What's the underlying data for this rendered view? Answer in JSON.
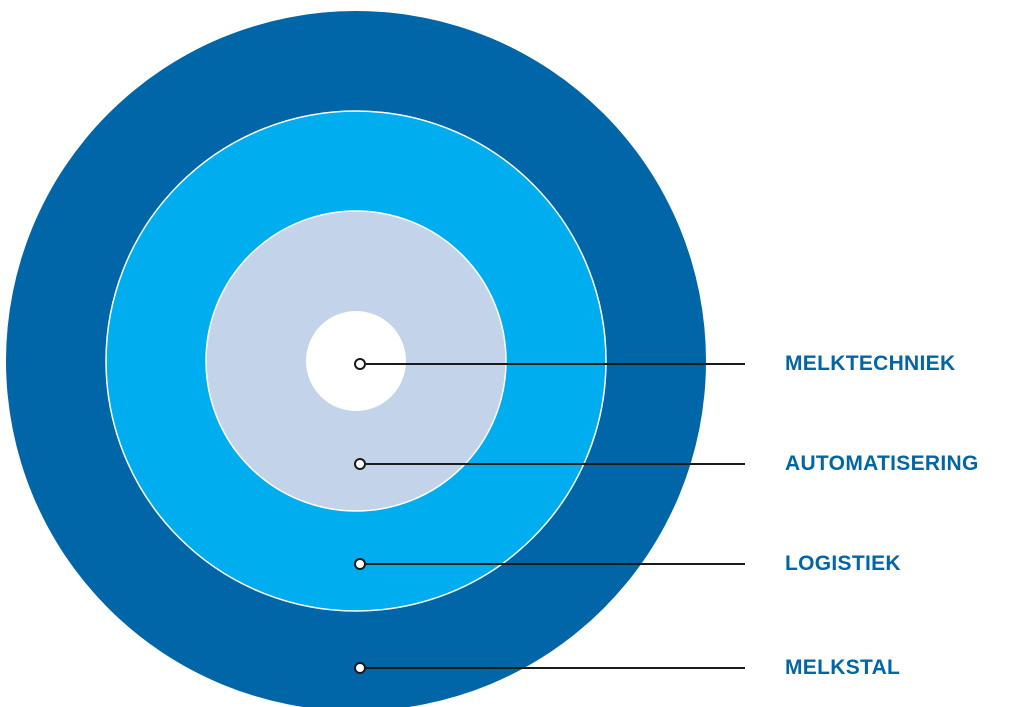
{
  "diagram": {
    "rings": [
      {
        "name": "MELKSTAL",
        "color": "#0066a8"
      },
      {
        "name": "LOGISTIEK",
        "color": "#00aeef"
      },
      {
        "name": "AUTOMATISERING",
        "color": "#c3d3ea"
      },
      {
        "name": "MELKTECHNIEK",
        "color": "#ffffff"
      }
    ],
    "labels": {
      "melktechniek": "MELKTECHNIEK",
      "automatisering": "AUTOMATISERING",
      "logistiek": "LOGISTIEK",
      "melkstal": "MELKSTAL"
    },
    "label_color": "#0066a8",
    "leader_color": "#1a1a1a",
    "separator_color": "#ffffff"
  }
}
